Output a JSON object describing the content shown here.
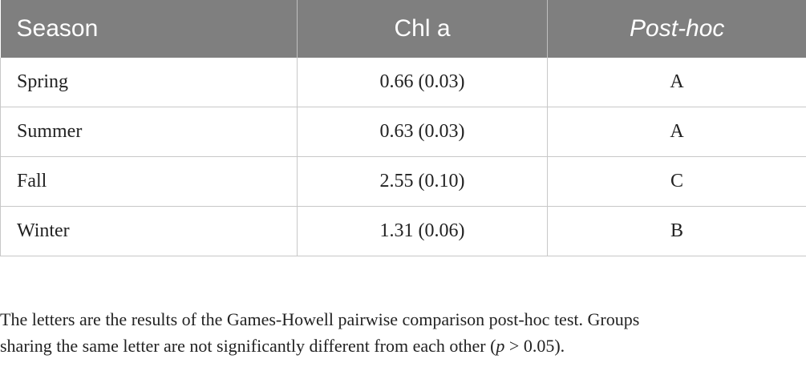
{
  "table": {
    "headers": [
      "Season",
      "Chl a",
      "Post-hoc"
    ],
    "rows": [
      {
        "season": "Spring",
        "chl_a": "0.66 (0.03)",
        "post_hoc": "A"
      },
      {
        "season": "Summer",
        "chl_a": "0.63 (0.03)",
        "post_hoc": "A"
      },
      {
        "season": "Fall",
        "chl_a": "2.55 (0.10)",
        "post_hoc": "C"
      },
      {
        "season": "Winter",
        "chl_a": "1.31 (0.06)",
        "post_hoc": "B"
      }
    ]
  },
  "footnote": {
    "line1": "The letters are the results of the Games-Howell pairwise comparison post-hoc test. Groups",
    "line2_before": "sharing the same letter are not significantly different from each other (",
    "line2_italic": "p",
    "line2_after": " > 0.05)."
  }
}
